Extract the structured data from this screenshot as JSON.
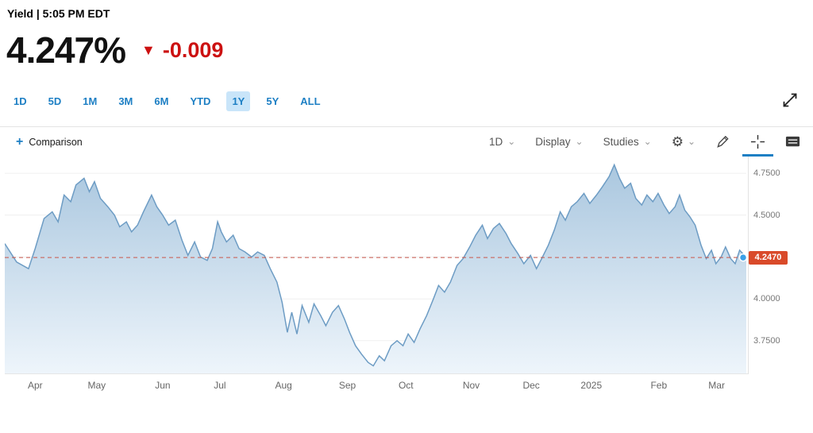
{
  "header": {
    "yield_label": "Yield | 5:05 PM EDT",
    "price": "4.247%",
    "change_arrow": "▼",
    "change": "-0.009"
  },
  "range_tabs": {
    "items": [
      "1D",
      "5D",
      "1M",
      "3M",
      "6M",
      "YTD",
      "1Y",
      "5Y",
      "ALL"
    ],
    "active": "1Y"
  },
  "toolbar": {
    "comparison_plus": "+",
    "comparison_label": "Comparison",
    "dropdowns": [
      "1D",
      "Display",
      "Studies"
    ],
    "tool_icons": [
      "gear-icon",
      "pencil-icon",
      "crosshair-icon",
      "news-icon"
    ],
    "active_tool": "crosshair"
  },
  "colors": {
    "accent_blue": "#1d7fc4",
    "tab_active_bg": "#c9e5f9",
    "change_red": "#cc1111",
    "line": "#6d9cc4",
    "fill_top": "#aac7df",
    "fill_bottom": "#eef5fb",
    "dashed_line": "#c9574b",
    "price_tag_bg": "#d94a2a",
    "dot": "#3aa0e8"
  },
  "chart_data": {
    "type": "area",
    "title": "Yield",
    "series_name": "Yield %",
    "last_value": 4.247,
    "last_value_label": "4.2470",
    "legend": "none",
    "grid": "horizontal-faint",
    "x_axis": {
      "labels": [
        {
          "label": "Apr",
          "f": 0.041
        },
        {
          "label": "May",
          "f": 0.124
        },
        {
          "label": "Jun",
          "f": 0.213
        },
        {
          "label": "Jul",
          "f": 0.29
        },
        {
          "label": "Aug",
          "f": 0.376
        },
        {
          "label": "Sep",
          "f": 0.462
        },
        {
          "label": "Oct",
          "f": 0.541
        },
        {
          "label": "Nov",
          "f": 0.629
        },
        {
          "label": "Dec",
          "f": 0.71
        },
        {
          "label": "2025",
          "f": 0.791
        },
        {
          "label": "Feb",
          "f": 0.882
        },
        {
          "label": "Mar",
          "f": 0.96
        }
      ]
    },
    "y_axis": {
      "min": 3.55,
      "max": 4.85,
      "ticks": [
        {
          "v": 4.75,
          "label": "4.7500"
        },
        {
          "v": 4.5,
          "label": "4.5000"
        },
        {
          "v": 4.25,
          "label": "4.2500"
        },
        {
          "v": 4.0,
          "label": "4.0000"
        },
        {
          "v": 3.75,
          "label": "3.7500"
        }
      ]
    },
    "points": [
      [
        0.0,
        4.33
      ],
      [
        0.016,
        4.22
      ],
      [
        0.032,
        4.18
      ],
      [
        0.041,
        4.3
      ],
      [
        0.053,
        4.48
      ],
      [
        0.064,
        4.52
      ],
      [
        0.072,
        4.46
      ],
      [
        0.08,
        4.62
      ],
      [
        0.089,
        4.58
      ],
      [
        0.096,
        4.68
      ],
      [
        0.107,
        4.72
      ],
      [
        0.114,
        4.64
      ],
      [
        0.121,
        4.7
      ],
      [
        0.129,
        4.6
      ],
      [
        0.139,
        4.55
      ],
      [
        0.148,
        4.5
      ],
      [
        0.155,
        4.43
      ],
      [
        0.164,
        4.46
      ],
      [
        0.171,
        4.4
      ],
      [
        0.179,
        4.44
      ],
      [
        0.187,
        4.52
      ],
      [
        0.198,
        4.62
      ],
      [
        0.205,
        4.55
      ],
      [
        0.213,
        4.5
      ],
      [
        0.221,
        4.44
      ],
      [
        0.23,
        4.47
      ],
      [
        0.239,
        4.35
      ],
      [
        0.247,
        4.26
      ],
      [
        0.256,
        4.34
      ],
      [
        0.264,
        4.25
      ],
      [
        0.273,
        4.23
      ],
      [
        0.28,
        4.3
      ],
      [
        0.287,
        4.46
      ],
      [
        0.292,
        4.4
      ],
      [
        0.299,
        4.34
      ],
      [
        0.308,
        4.38
      ],
      [
        0.316,
        4.3
      ],
      [
        0.324,
        4.28
      ],
      [
        0.333,
        4.25
      ],
      [
        0.341,
        4.28
      ],
      [
        0.35,
        4.26
      ],
      [
        0.358,
        4.18
      ],
      [
        0.367,
        4.1
      ],
      [
        0.374,
        3.98
      ],
      [
        0.381,
        3.8
      ],
      [
        0.387,
        3.92
      ],
      [
        0.394,
        3.79
      ],
      [
        0.401,
        3.96
      ],
      [
        0.41,
        3.86
      ],
      [
        0.417,
        3.97
      ],
      [
        0.426,
        3.9
      ],
      [
        0.433,
        3.84
      ],
      [
        0.442,
        3.92
      ],
      [
        0.45,
        3.96
      ],
      [
        0.458,
        3.88
      ],
      [
        0.465,
        3.8
      ],
      [
        0.473,
        3.72
      ],
      [
        0.481,
        3.67
      ],
      [
        0.49,
        3.62
      ],
      [
        0.497,
        3.6
      ],
      [
        0.505,
        3.66
      ],
      [
        0.512,
        3.63
      ],
      [
        0.521,
        3.72
      ],
      [
        0.529,
        3.75
      ],
      [
        0.537,
        3.72
      ],
      [
        0.544,
        3.79
      ],
      [
        0.552,
        3.74
      ],
      [
        0.56,
        3.82
      ],
      [
        0.569,
        3.9
      ],
      [
        0.578,
        4.0
      ],
      [
        0.585,
        4.08
      ],
      [
        0.593,
        4.04
      ],
      [
        0.601,
        4.1
      ],
      [
        0.61,
        4.2
      ],
      [
        0.618,
        4.24
      ],
      [
        0.627,
        4.31
      ],
      [
        0.635,
        4.38
      ],
      [
        0.644,
        4.44
      ],
      [
        0.651,
        4.36
      ],
      [
        0.659,
        4.42
      ],
      [
        0.667,
        4.45
      ],
      [
        0.676,
        4.39
      ],
      [
        0.683,
        4.33
      ],
      [
        0.692,
        4.27
      ],
      [
        0.7,
        4.21
      ],
      [
        0.709,
        4.26
      ],
      [
        0.717,
        4.18
      ],
      [
        0.724,
        4.24
      ],
      [
        0.733,
        4.32
      ],
      [
        0.741,
        4.41
      ],
      [
        0.749,
        4.52
      ],
      [
        0.756,
        4.47
      ],
      [
        0.764,
        4.55
      ],
      [
        0.772,
        4.58
      ],
      [
        0.781,
        4.63
      ],
      [
        0.789,
        4.57
      ],
      [
        0.798,
        4.62
      ],
      [
        0.806,
        4.67
      ],
      [
        0.815,
        4.73
      ],
      [
        0.822,
        4.8
      ],
      [
        0.829,
        4.72
      ],
      [
        0.836,
        4.66
      ],
      [
        0.844,
        4.69
      ],
      [
        0.851,
        4.6
      ],
      [
        0.859,
        4.56
      ],
      [
        0.866,
        4.62
      ],
      [
        0.874,
        4.58
      ],
      [
        0.881,
        4.63
      ],
      [
        0.889,
        4.56
      ],
      [
        0.896,
        4.51
      ],
      [
        0.904,
        4.55
      ],
      [
        0.91,
        4.62
      ],
      [
        0.917,
        4.53
      ],
      [
        0.924,
        4.49
      ],
      [
        0.931,
        4.44
      ],
      [
        0.939,
        4.32
      ],
      [
        0.946,
        4.24
      ],
      [
        0.953,
        4.29
      ],
      [
        0.959,
        4.21
      ],
      [
        0.966,
        4.25
      ],
      [
        0.972,
        4.31
      ],
      [
        0.979,
        4.24
      ],
      [
        0.985,
        4.21
      ],
      [
        0.991,
        4.29
      ],
      [
        1.0,
        4.247
      ]
    ]
  }
}
